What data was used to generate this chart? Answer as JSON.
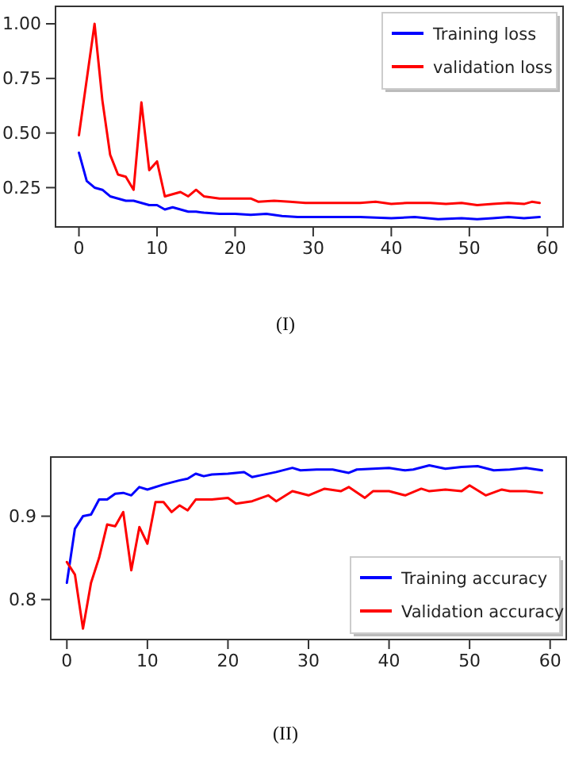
{
  "chart_data": [
    {
      "type": "line",
      "legend": "top right",
      "annotations": [
        "(I)"
      ],
      "xlim": [
        -3,
        62
      ],
      "xticks": [
        0,
        10,
        20,
        30,
        40,
        50,
        60
      ],
      "ylim": [
        0.07,
        1.08
      ],
      "yticks": [
        {
          "value": 0.25,
          "label": "0.25"
        },
        {
          "value": 0.5,
          "label": "0.50"
        },
        {
          "value": 0.75,
          "label": "0.75"
        },
        {
          "value": 1,
          "label": "1.00"
        }
      ],
      "series": [
        {
          "name": "Training loss",
          "color": "#0000ff",
          "x": [
            0,
            1,
            2,
            3,
            4,
            5,
            6,
            7,
            8,
            9,
            10,
            11,
            12,
            13,
            14,
            15,
            16,
            18,
            20,
            22,
            24,
            26,
            28,
            30,
            33,
            36,
            40,
            43,
            46,
            49,
            51,
            53,
            55,
            57,
            59
          ],
          "values": [
            0.41,
            0.28,
            0.25,
            0.24,
            0.21,
            0.2,
            0.19,
            0.19,
            0.18,
            0.17,
            0.17,
            0.15,
            0.16,
            0.15,
            0.14,
            0.14,
            0.135,
            0.13,
            0.13,
            0.125,
            0.13,
            0.12,
            0.115,
            0.115,
            0.115,
            0.115,
            0.11,
            0.115,
            0.105,
            0.11,
            0.105,
            0.11,
            0.115,
            0.11,
            0.115
          ]
        },
        {
          "name": "validation loss",
          "color": "#ff0000",
          "x": [
            0,
            2,
            3,
            4,
            5,
            6,
            7,
            8,
            9,
            10,
            11,
            12,
            13,
            14,
            15,
            16,
            18,
            20,
            22,
            23,
            25,
            27,
            29,
            31,
            33,
            36,
            38,
            40,
            42,
            45,
            47,
            49,
            51,
            53,
            55,
            57,
            58,
            59
          ],
          "values": [
            0.49,
            1.0,
            0.65,
            0.4,
            0.31,
            0.3,
            0.24,
            0.64,
            0.33,
            0.37,
            0.21,
            0.22,
            0.23,
            0.21,
            0.24,
            0.21,
            0.2,
            0.2,
            0.2,
            0.185,
            0.19,
            0.185,
            0.18,
            0.18,
            0.18,
            0.18,
            0.185,
            0.175,
            0.18,
            0.18,
            0.175,
            0.18,
            0.17,
            0.175,
            0.18,
            0.175,
            0.185,
            0.18
          ]
        }
      ]
    },
    {
      "type": "line",
      "legend": "bottom right",
      "annotations": [
        "(II)"
      ],
      "xlim": [
        -2,
        62
      ],
      "xticks": [
        0,
        10,
        20,
        30,
        40,
        50,
        60
      ],
      "ylim": [
        0.752,
        0.971
      ],
      "yticks": [
        0.8,
        0.9
      ],
      "series": [
        {
          "name": "Training accuracy",
          "color": "#0000ff",
          "x": [
            0,
            1,
            2,
            3,
            4,
            5,
            6,
            7,
            8,
            9,
            10,
            12,
            14,
            15,
            16,
            17,
            18,
            20,
            22,
            23,
            24,
            26,
            28,
            29,
            31,
            33,
            35,
            36,
            38,
            40,
            42,
            43,
            45,
            47,
            49,
            51,
            53,
            55,
            57,
            59
          ],
          "values": [
            0.82,
            0.885,
            0.9,
            0.902,
            0.92,
            0.92,
            0.927,
            0.928,
            0.925,
            0.935,
            0.932,
            0.938,
            0.943,
            0.945,
            0.951,
            0.948,
            0.95,
            0.951,
            0.953,
            0.947,
            0.949,
            0.953,
            0.958,
            0.955,
            0.956,
            0.956,
            0.952,
            0.956,
            0.957,
            0.958,
            0.955,
            0.956,
            0.961,
            0.957,
            0.959,
            0.96,
            0.955,
            0.956,
            0.958,
            0.955
          ]
        },
        {
          "name": "Validation accuracy",
          "color": "#ff0000",
          "x": [
            0,
            1,
            2,
            3,
            4,
            5,
            6,
            7,
            8,
            9,
            10,
            11,
            12,
            13,
            14,
            15,
            16,
            18,
            20,
            21,
            23,
            25,
            26,
            28,
            30,
            32,
            34,
            35,
            37,
            38,
            40,
            42,
            44,
            45,
            47,
            49,
            50,
            52,
            54,
            55,
            57,
            59
          ],
          "values": [
            0.845,
            0.83,
            0.765,
            0.82,
            0.85,
            0.89,
            0.888,
            0.905,
            0.835,
            0.887,
            0.867,
            0.917,
            0.917,
            0.905,
            0.913,
            0.907,
            0.92,
            0.92,
            0.922,
            0.915,
            0.918,
            0.925,
            0.918,
            0.93,
            0.925,
            0.933,
            0.93,
            0.935,
            0.922,
            0.93,
            0.93,
            0.925,
            0.933,
            0.93,
            0.932,
            0.93,
            0.937,
            0.925,
            0.932,
            0.93,
            0.93,
            0.928
          ]
        }
      ]
    }
  ]
}
